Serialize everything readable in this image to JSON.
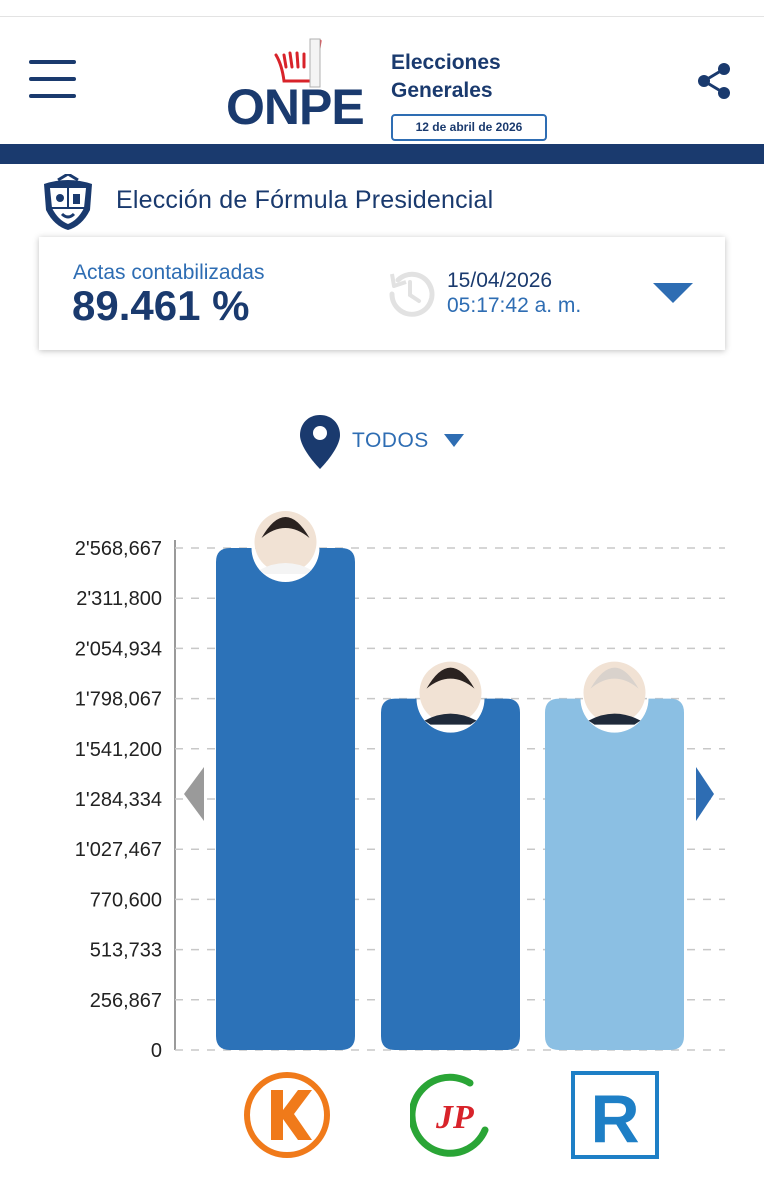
{
  "header": {
    "logo_text": "ONPE",
    "election_title_line1": "Elecciones",
    "election_title_line2": "Generales",
    "election_date": "12 de abril de 2026"
  },
  "section": {
    "title": "Elección de Fórmula Presidencial"
  },
  "actas": {
    "label": "Actas contabilizadas",
    "value": "89.461 %",
    "date": "15/04/2026",
    "time": "05:17:42 a. m."
  },
  "filter": {
    "selected": "TODOS"
  },
  "colors": {
    "navy": "#1a3a6e",
    "blue": "#2e6db3",
    "bar_dark": "#2c72b8",
    "bar_light": "#8bbfe3",
    "arrow_grey": "#9a9a9a"
  },
  "party_logos": [
    {
      "name": "K-logo",
      "letter": "K",
      "color": "#f07a1a"
    },
    {
      "name": "JP-logo",
      "letter": "JP",
      "color": "#2aa536"
    },
    {
      "name": "R-logo",
      "letter": "R",
      "color": "#1e7fc6"
    }
  ],
  "chart_data": {
    "type": "bar",
    "title": "",
    "xlabel": "",
    "ylabel": "",
    "ylim": [
      0,
      2568667
    ],
    "ytick_labels": [
      "2'568,667",
      "2'311,800",
      "2'054,934",
      "1'798,067",
      "1'541,200",
      "1'284,334",
      "1'027,467",
      "770,600",
      "513,733",
      "256,867",
      "0"
    ],
    "ytick_values": [
      2568667,
      2311800,
      2054934,
      1798067,
      1541200,
      1284334,
      1027467,
      770600,
      513733,
      256867,
      0
    ],
    "grid": true,
    "categories": [
      "K",
      "JP",
      "R"
    ],
    "values": [
      2568667,
      1798067,
      1798067
    ],
    "bar_colors": [
      "#2c72b8",
      "#2c72b8",
      "#8bbfe3"
    ]
  }
}
